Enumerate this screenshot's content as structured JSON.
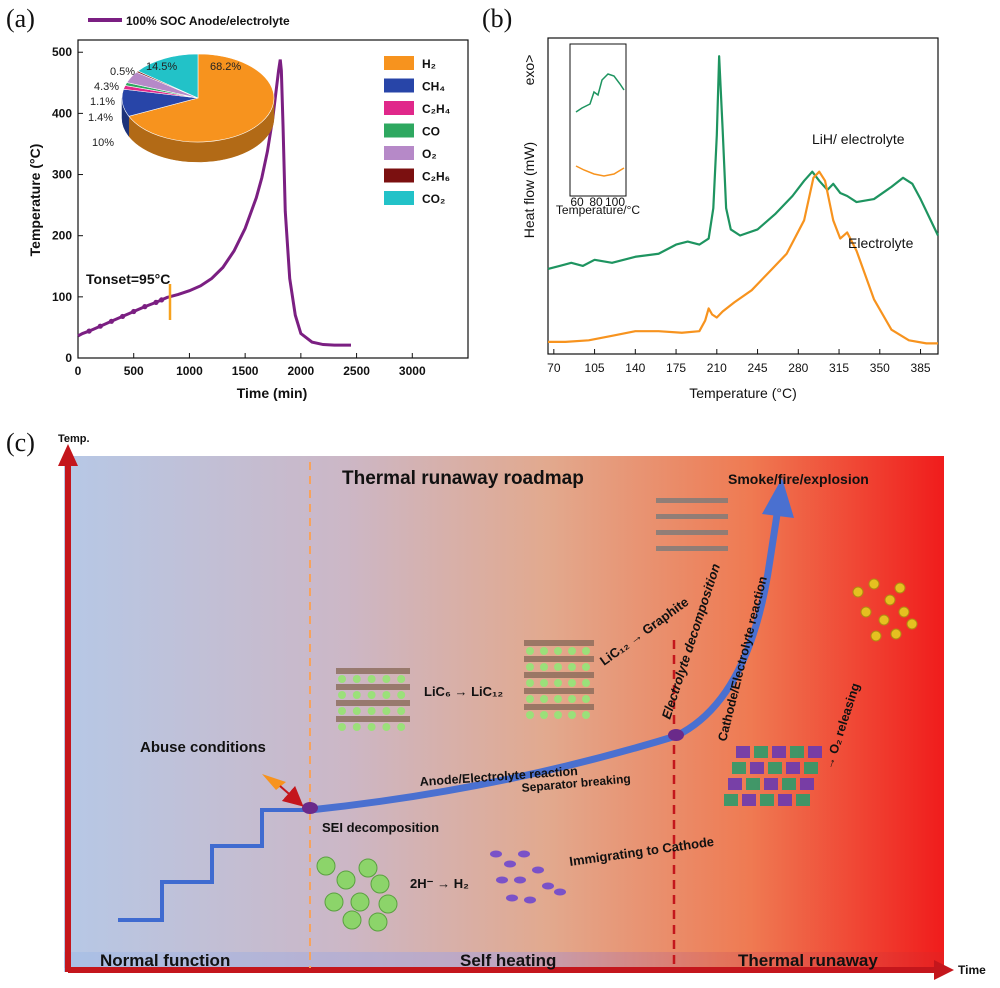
{
  "labels": {
    "a": "(a)",
    "b": "(b)",
    "c": "(c)"
  },
  "chart_data": [
    {
      "id": "a",
      "type": "line",
      "legend": "100% SOC Anode/electrolyte",
      "xlabel": "Time (min)",
      "ylabel": "Temperature (°C)",
      "xlim": [
        0,
        3500
      ],
      "ylim": [
        0,
        520
      ],
      "xticks": [
        "0",
        "500",
        "1000",
        "1500",
        "2000",
        "2500",
        "3000"
      ],
      "yticks": [
        "0",
        "100",
        "200",
        "300",
        "400",
        "500"
      ],
      "annotation": {
        "text": "Tonset=95°C",
        "x": 750,
        "y": 95
      },
      "color": "#7b1f82",
      "series": [
        {
          "x": [
            0,
            40,
            100,
            200,
            300,
            400,
            500,
            600,
            700,
            750,
            800,
            900,
            1000,
            1100,
            1200,
            1300,
            1400,
            1500,
            1600,
            1650,
            1700,
            1750,
            1780,
            1800,
            1815,
            1825,
            1840,
            1860,
            1900,
            1950,
            2000,
            2100,
            2200,
            2300,
            2450
          ],
          "y": [
            36,
            40,
            44,
            52,
            60,
            68,
            76,
            84,
            91,
            95,
            99,
            104,
            110,
            118,
            130,
            148,
            175,
            212,
            262,
            295,
            338,
            395,
            440,
            470,
            488,
            470,
            380,
            240,
            130,
            70,
            40,
            26,
            22,
            21,
            21
          ]
        }
      ],
      "pie": {
        "slices": [
          {
            "name": "H₂",
            "value": 68.2,
            "label": "68.2%",
            "color": "#f7931e"
          },
          {
            "name": "CH₄",
            "value": 10,
            "label": "10%",
            "color": "#2845a8"
          },
          {
            "name": "C₂H₄",
            "value": 1.4,
            "label": "1.4%",
            "color": "#e0288a"
          },
          {
            "name": "CO",
            "value": 1.1,
            "label": "1.1%",
            "color": "#2ea860"
          },
          {
            "name": "O₂",
            "value": 4.3,
            "label": "4.3%",
            "color": "#b689c8"
          },
          {
            "name": "C₂H₆",
            "value": 0.5,
            "label": "0.5%",
            "color": "#7b1010"
          },
          {
            "name": "CO₂",
            "value": 14.5,
            "label": "14.5%",
            "color": "#22c2c8"
          }
        ]
      }
    },
    {
      "id": "b",
      "type": "line",
      "xlabel": "Temperature (°C)",
      "ylabel": "Heat flow (mW)",
      "exo": "exo>",
      "xlim": [
        65,
        400
      ],
      "xticks": [
        70,
        105,
        140,
        175,
        210,
        245,
        280,
        315,
        350,
        385
      ],
      "series": [
        {
          "name": "LiH/ electrolyte",
          "color": "#1e9460",
          "x": [
            65,
            75,
            85,
            95,
            105,
            120,
            140,
            160,
            175,
            185,
            195,
            203,
            207,
            210,
            212,
            215,
            218,
            222,
            230,
            245,
            260,
            275,
            285,
            292,
            298,
            305,
            310,
            316,
            322,
            330,
            345,
            360,
            370,
            378,
            385,
            395,
            400
          ],
          "y": [
            2.6,
            2.7,
            2.8,
            2.7,
            2.9,
            2.8,
            3.0,
            3.1,
            3.4,
            3.5,
            3.4,
            3.6,
            4.6,
            7.0,
            9.6,
            7.2,
            4.6,
            3.9,
            3.7,
            3.9,
            4.4,
            5.0,
            5.5,
            5.8,
            5.5,
            5.2,
            5.4,
            5.1,
            5.0,
            4.8,
            4.9,
            5.3,
            5.6,
            5.4,
            4.9,
            4.1,
            3.7
          ]
        },
        {
          "name": "Electrolyte",
          "color": "#f7931e",
          "x": [
            65,
            80,
            100,
            120,
            140,
            160,
            180,
            195,
            200,
            203,
            206,
            210,
            215,
            225,
            240,
            255,
            270,
            285,
            293,
            298,
            303,
            310,
            316,
            322,
            330,
            345,
            360,
            375,
            390,
            400
          ],
          "y": [
            0.2,
            0.2,
            0.25,
            0.4,
            0.55,
            0.55,
            0.5,
            0.55,
            0.9,
            1.3,
            1.1,
            1.0,
            1.2,
            1.5,
            1.9,
            2.5,
            3.1,
            4.2,
            5.6,
            5.8,
            5.5,
            4.2,
            3.6,
            3.8,
            3.2,
            1.6,
            0.6,
            0.25,
            0.15,
            0.15
          ]
        }
      ],
      "inset": {
        "xticks": [
          60,
          80,
          100
        ],
        "xlabel": "Temperature/°C"
      }
    }
  ],
  "roadmap": {
    "title": "Thermal runaway roadmap",
    "y_axis": "Temp.",
    "x_axis": "Time",
    "stages": {
      "normal": "Normal function",
      "self": "Self heating",
      "runaway": "Thermal runaway"
    },
    "top_label": "Smoke/fire/explosion",
    "abuse": "Abuse conditions",
    "sei": "SEI decomposition",
    "anode": "Anode/Electrolyte reaction",
    "separator": "Separator breaking",
    "immigrating": "Immigrating to Cathode",
    "electrolyte_dec": "Electrolyte decomposition",
    "cathode": "Cathode/Electrolyte reaction",
    "o2": "→ O₂ releasing",
    "lic6": "LiC₆ → LiC₁₂",
    "lic12": "LiC₁₂ → Graphite",
    "h": "2H⁻ → H₂"
  }
}
